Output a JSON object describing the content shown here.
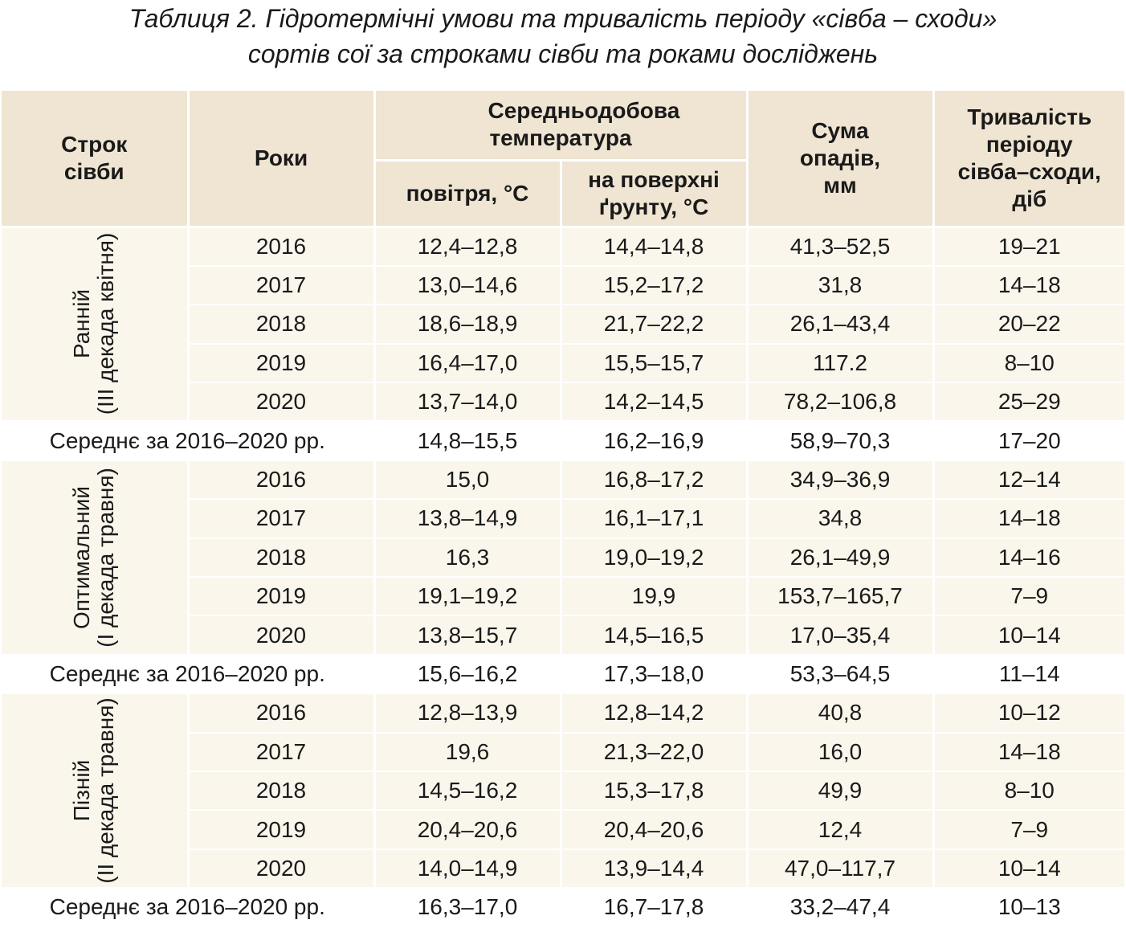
{
  "title": {
    "line1": "Таблиця 2. Гідротермічні умови та тривалість періоду «сівба – сходи»",
    "line2": "сортів сої за строками сівби та роками досліджень"
  },
  "headers": {
    "sowing_term": "Строк сівби",
    "years": "Роки",
    "avg_temp": "Середньодобова температура",
    "air": "повітря, °С",
    "soil_surface": "на поверхні ґрунту, °С",
    "precip": "Сума опадів, мм",
    "duration": "Тривалість періоду сівба–сходи, діб"
  },
  "groups": [
    {
      "label_line1": "Ранній",
      "label_line2": "(III декада квітня)",
      "rows": [
        {
          "year": "2016",
          "air": "12,4–12,8",
          "soil": "14,4–14,8",
          "precip": "41,3–52,5",
          "duration": "19–21"
        },
        {
          "year": "2017",
          "air": "13,0–14,6",
          "soil": "15,2–17,2",
          "precip": "31,8",
          "duration": "14–18"
        },
        {
          "year": "2018",
          "air": "18,6–18,9",
          "soil": "21,7–22,2",
          "precip": "26,1–43,4",
          "duration": "20–22"
        },
        {
          "year": "2019",
          "air": "16,4–17,0",
          "soil": "15,5–15,7",
          "precip": "117.2",
          "duration": "8–10"
        },
        {
          "year": "2020",
          "air": "13,7–14,0",
          "soil": "14,2–14,5",
          "precip": "78,2–106,8",
          "duration": "25–29"
        }
      ],
      "average": {
        "label": "Середнє за 2016–2020 рр.",
        "air": "14,8–15,5",
        "soil": "16,2–16,9",
        "precip": "58,9–70,3",
        "duration": "17–20"
      }
    },
    {
      "label_line1": "Оптимальний",
      "label_line2": "(I декада травня)",
      "rows": [
        {
          "year": "2016",
          "air": "15,0",
          "soil": "16,8–17,2",
          "precip": "34,9–36,9",
          "duration": "12–14"
        },
        {
          "year": "2017",
          "air": "13,8–14,9",
          "soil": "16,1–17,1",
          "precip": "34,8",
          "duration": "14–18"
        },
        {
          "year": "2018",
          "air": "16,3",
          "soil": "19,0–19,2",
          "precip": "26,1–49,9",
          "duration": "14–16"
        },
        {
          "year": "2019",
          "air": "19,1–19,2",
          "soil": "19,9",
          "precip": "153,7–165,7",
          "duration": "7–9"
        },
        {
          "year": "2020",
          "air": "13,8–15,7",
          "soil": "14,5–16,5",
          "precip": "17,0–35,4",
          "duration": "10–14"
        }
      ],
      "average": {
        "label": "Середнє за 2016–2020 рр.",
        "air": "15,6–16,2",
        "soil": "17,3–18,0",
        "precip": "53,3–64,5",
        "duration": "11–14"
      }
    },
    {
      "label_line1": "Пізній",
      "label_line2": "(II декада травня)",
      "rows": [
        {
          "year": "2016",
          "air": "12,8–13,9",
          "soil": "12,8–14,2",
          "precip": "40,8",
          "duration": "10–12"
        },
        {
          "year": "2017",
          "air": "19,6",
          "soil": "21,3–22,0",
          "precip": "16,0",
          "duration": "14–18"
        },
        {
          "year": "2018",
          "air": "14,5–16,2",
          "soil": "15,3–17,8",
          "precip": "49,9",
          "duration": "8–10"
        },
        {
          "year": "2019",
          "air": "20,4–20,6",
          "soil": "20,4–20,6",
          "precip": "12,4",
          "duration": "7–9"
        },
        {
          "year": "2020",
          "air": "14,0–14,9",
          "soil": "13,9–14,4",
          "precip": "47,0–117,7",
          "duration": "10–14"
        }
      ],
      "average": {
        "label": "Середнє за 2016–2020 рр.",
        "air": "16,3–17,0",
        "soil": "16,7–17,8",
        "precip": "33,2–47,4",
        "duration": "10–13"
      }
    }
  ]
}
